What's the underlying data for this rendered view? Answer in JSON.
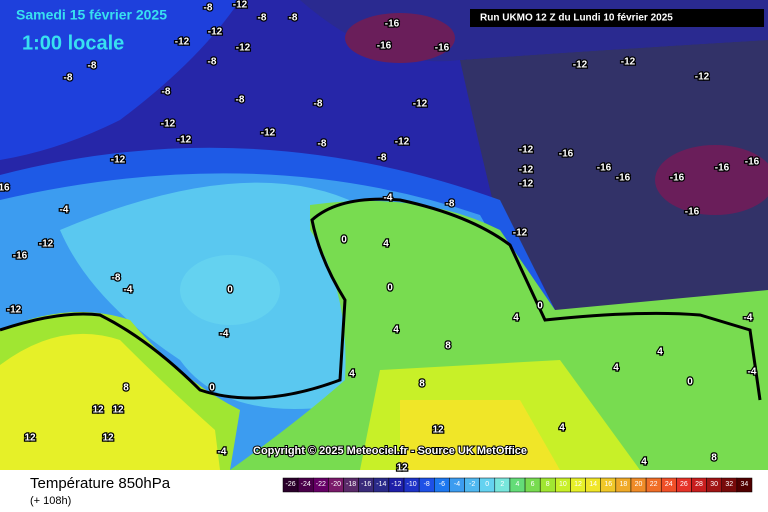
{
  "header": {
    "date": "Samedi 15 février 2025",
    "time": "1:00 locale",
    "run": "Run UKMO 12 Z du Lundi 10 février 2025"
  },
  "title": "Température 850hPa",
  "subtitle": "(+ 108h)",
  "copyright": "Copyright © 2025 Meteociel.fr - Source UK MetOffice",
  "colorbar": {
    "ticks": [
      -26,
      -24,
      -22,
      -20,
      -18,
      -16,
      -14,
      -12,
      -10,
      -8,
      -6,
      -4,
      -2,
      0,
      2,
      4,
      6,
      8,
      10,
      12,
      14,
      16,
      18,
      20,
      22,
      24,
      26,
      28,
      30,
      32,
      34
    ],
    "colors": [
      "#2a002a",
      "#4a004a",
      "#660066",
      "#7a1a6a",
      "#5a2a6a",
      "#3a2a7a",
      "#2a2a8a",
      "#1e1ea8",
      "#1e32c8",
      "#1e50e6",
      "#1e78f0",
      "#3c9cf0",
      "#50b8f0",
      "#64d2f0",
      "#78e6dc",
      "#64dc78",
      "#78dc50",
      "#a0e632",
      "#c8f028",
      "#e6f028",
      "#f0e628",
      "#f0c828",
      "#f0aa28",
      "#f08c28",
      "#f06e28",
      "#f05028",
      "#e63228",
      "#c81e1e",
      "#a01414",
      "#780a0a",
      "#500000"
    ]
  },
  "map_labels": [
    "-8",
    "-12",
    "-8",
    "-8",
    "-12",
    "-12",
    "-12",
    "-8",
    "-8",
    "-8",
    "-8",
    "-8",
    "-8",
    "-12",
    "-12",
    "-12",
    "-12",
    "-8",
    "-12",
    "-8",
    "-12",
    "-16",
    "-16",
    "-16",
    "-12",
    "-12",
    "-12",
    "-16",
    "-16",
    "-16",
    "-16",
    "-16",
    "-16",
    "-16",
    "-12",
    "-12",
    "-12",
    "-12",
    "-8",
    "-4",
    "0",
    "4",
    "0",
    "0",
    "-4",
    "0",
    "4",
    "8",
    "8",
    "4",
    "8",
    "12",
    "12",
    "12",
    "12",
    "12",
    "12",
    "4",
    "4",
    "0",
    "4",
    "-4",
    "-4",
    "-8",
    "-4",
    "-12",
    "-12",
    "-16",
    "16",
    "-4",
    "4",
    "8",
    "4",
    "0",
    "-4"
  ]
}
